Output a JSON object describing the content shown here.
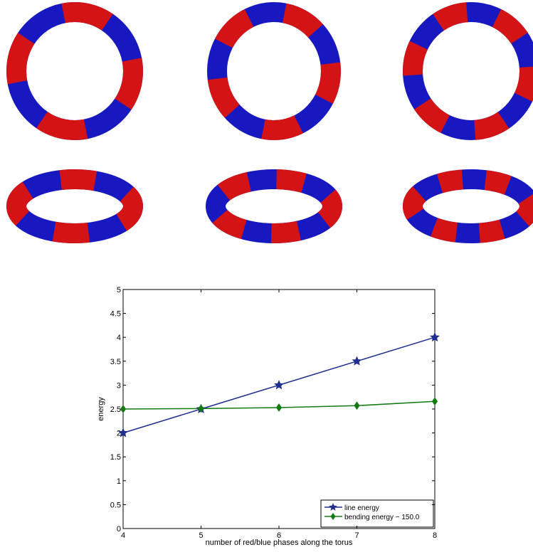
{
  "chart_data": {
    "type": "line",
    "x_label": "number of red/blue phases along the torus",
    "y_label": "energy",
    "x": [
      4,
      5,
      6,
      7,
      8
    ],
    "series": [
      {
        "name": "line energy",
        "color": "#1f2f8f",
        "marker": "star",
        "values": [
          2,
          2.5,
          3,
          3.5,
          4
        ]
      },
      {
        "name": "bending energy − 150.0",
        "color": "#137a13",
        "marker": "diamond",
        "values": [
          2.5,
          2.51,
          2.53,
          2.57,
          2.66
        ]
      }
    ],
    "xlim": [
      4,
      8
    ],
    "xticks": [
      4,
      5,
      6,
      7,
      8
    ],
    "ylim": [
      0,
      5
    ],
    "yticks": [
      0,
      0.5,
      1,
      1.5,
      2,
      2.5,
      3,
      3.5,
      4,
      4.5,
      5
    ],
    "legend": "lower right"
  }
}
